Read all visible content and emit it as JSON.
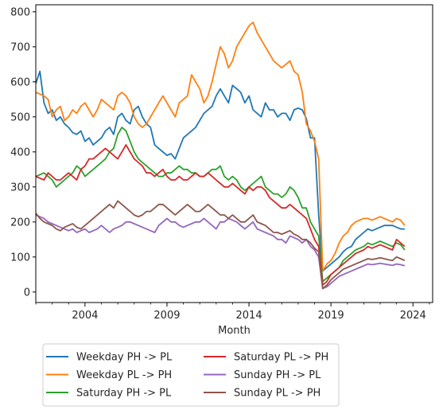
{
  "chart_data": {
    "type": "line",
    "title": "",
    "xlabel": "Month",
    "ylabel": "",
    "xlim": [
      2001.0,
      2025.2
    ],
    "ylim": [
      -30,
      820
    ],
    "x_ticks": [
      2004,
      2009,
      2014,
      2019,
      2024
    ],
    "x_tick_labels": [
      "2004",
      "2009",
      "2014",
      "2019",
      "2024"
    ],
    "y_ticks": [
      0,
      100,
      200,
      300,
      400,
      500,
      600,
      700,
      800
    ],
    "y_tick_labels": [
      "0",
      "100",
      "200",
      "300",
      "400",
      "500",
      "600",
      "700",
      "800"
    ],
    "grid": false,
    "legend_position": "bottom, below axes, 2 columns",
    "series": [
      {
        "name": "Weekday PH -> PL",
        "color": "#1f77b4",
        "start_year": 2001.0,
        "step_years": 0.25,
        "values": [
          595,
          630,
          540,
          510,
          520,
          490,
          500,
          480,
          470,
          455,
          450,
          460,
          430,
          440,
          420,
          430,
          440,
          460,
          470,
          450,
          500,
          510,
          490,
          480,
          520,
          530,
          500,
          480,
          470,
          420,
          410,
          400,
          390,
          395,
          380,
          410,
          440,
          450,
          460,
          470,
          490,
          510,
          520,
          530,
          560,
          580,
          560,
          540,
          590,
          580,
          570,
          540,
          560,
          520,
          510,
          500,
          540,
          520,
          520,
          500,
          510,
          510,
          490,
          520,
          525,
          520,
          495,
          440,
          440,
          220,
          60,
          70,
          80,
          90,
          100,
          115,
          125,
          130,
          150,
          160,
          170,
          180,
          175,
          180,
          185,
          190,
          190,
          190,
          185,
          180,
          180
        ],
        "smooth": true
      },
      {
        "name": "Weekday PL -> PH",
        "color": "#ff7f0e",
        "start_year": 2001.0,
        "step_years": 0.25,
        "values": [
          570,
          565,
          560,
          550,
          500,
          520,
          530,
          490,
          500,
          520,
          510,
          530,
          540,
          520,
          500,
          520,
          550,
          540,
          530,
          520,
          560,
          570,
          560,
          540,
          500,
          480,
          470,
          480,
          500,
          520,
          540,
          560,
          540,
          520,
          500,
          540,
          550,
          560,
          620,
          600,
          580,
          540,
          560,
          600,
          650,
          700,
          680,
          640,
          660,
          700,
          720,
          740,
          760,
          770,
          740,
          720,
          700,
          680,
          660,
          650,
          640,
          650,
          660,
          630,
          620,
          570,
          480,
          460,
          430,
          380,
          60,
          80,
          90,
          110,
          140,
          160,
          170,
          190,
          200,
          205,
          210,
          210,
          205,
          210,
          215,
          210,
          205,
          200,
          210,
          205,
          190
        ],
        "smooth": true
      },
      {
        "name": "Saturday PH -> PL",
        "color": "#2ca02c",
        "start_year": 2001.0,
        "step_years": 0.25,
        "values": [
          330,
          335,
          340,
          330,
          320,
          300,
          310,
          320,
          330,
          340,
          360,
          350,
          330,
          340,
          350,
          360,
          370,
          380,
          400,
          410,
          450,
          470,
          460,
          430,
          400,
          380,
          370,
          360,
          350,
          340,
          330,
          330,
          340,
          340,
          350,
          360,
          350,
          350,
          340,
          340,
          330,
          330,
          340,
          350,
          350,
          360,
          330,
          320,
          330,
          320,
          300,
          290,
          300,
          310,
          320,
          330,
          300,
          290,
          280,
          280,
          270,
          280,
          300,
          290,
          270,
          240,
          240,
          200,
          180,
          160,
          30,
          40,
          50,
          60,
          70,
          90,
          100,
          110,
          120,
          125,
          130,
          140,
          135,
          140,
          145,
          140,
          135,
          130,
          140,
          135,
          120
        ],
        "smooth": true
      },
      {
        "name": "Saturday PL -> PH",
        "color": "#d62728",
        "start_year": 2001.0,
        "step_years": 0.25,
        "values": [
          330,
          325,
          320,
          340,
          330,
          320,
          320,
          330,
          340,
          330,
          320,
          350,
          360,
          380,
          380,
          390,
          400,
          410,
          400,
          390,
          380,
          400,
          420,
          400,
          380,
          370,
          360,
          340,
          340,
          330,
          340,
          350,
          330,
          320,
          320,
          330,
          320,
          320,
          330,
          340,
          330,
          330,
          340,
          330,
          320,
          310,
          300,
          300,
          310,
          300,
          290,
          280,
          300,
          290,
          300,
          300,
          290,
          270,
          260,
          250,
          240,
          240,
          250,
          240,
          230,
          220,
          210,
          180,
          150,
          130,
          20,
          30,
          50,
          60,
          70,
          80,
          90,
          100,
          110,
          115,
          120,
          130,
          125,
          130,
          135,
          130,
          125,
          120,
          150,
          140,
          130
        ],
        "smooth": true
      },
      {
        "name": "Sunday PH -> PL",
        "color": "#9467bd",
        "start_year": 2001.0,
        "step_years": 0.25,
        "values": [
          220,
          215,
          210,
          200,
          195,
          190,
          185,
          180,
          175,
          180,
          170,
          175,
          180,
          170,
          175,
          180,
          190,
          180,
          170,
          180,
          185,
          190,
          200,
          200,
          195,
          190,
          185,
          180,
          175,
          170,
          190,
          200,
          210,
          200,
          200,
          190,
          185,
          190,
          195,
          200,
          200,
          210,
          200,
          190,
          180,
          200,
          200,
          210,
          205,
          200,
          190,
          180,
          190,
          200,
          180,
          175,
          170,
          165,
          160,
          150,
          150,
          140,
          160,
          155,
          150,
          140,
          150,
          130,
          120,
          100,
          10,
          15,
          25,
          35,
          45,
          50,
          55,
          60,
          65,
          70,
          75,
          80,
          78,
          80,
          82,
          80,
          78,
          76,
          80,
          78,
          75
        ],
        "smooth": true
      },
      {
        "name": "Sunday PL -> PH",
        "color": "#8c564b",
        "start_year": 2001.0,
        "step_years": 0.25,
        "values": [
          225,
          210,
          200,
          195,
          190,
          180,
          175,
          185,
          190,
          195,
          185,
          180,
          190,
          200,
          210,
          220,
          230,
          240,
          250,
          240,
          260,
          250,
          240,
          230,
          220,
          215,
          220,
          230,
          230,
          240,
          250,
          250,
          240,
          230,
          220,
          230,
          240,
          250,
          240,
          230,
          230,
          240,
          250,
          240,
          230,
          220,
          220,
          210,
          220,
          210,
          200,
          200,
          210,
          220,
          200,
          195,
          190,
          180,
          170,
          170,
          165,
          170,
          175,
          165,
          160,
          150,
          150,
          140,
          125,
          115,
          10,
          20,
          35,
          45,
          55,
          65,
          70,
          75,
          80,
          85,
          90,
          95,
          93,
          95,
          98,
          95,
          92,
          90,
          100,
          95,
          90
        ],
        "smooth": true
      }
    ]
  }
}
